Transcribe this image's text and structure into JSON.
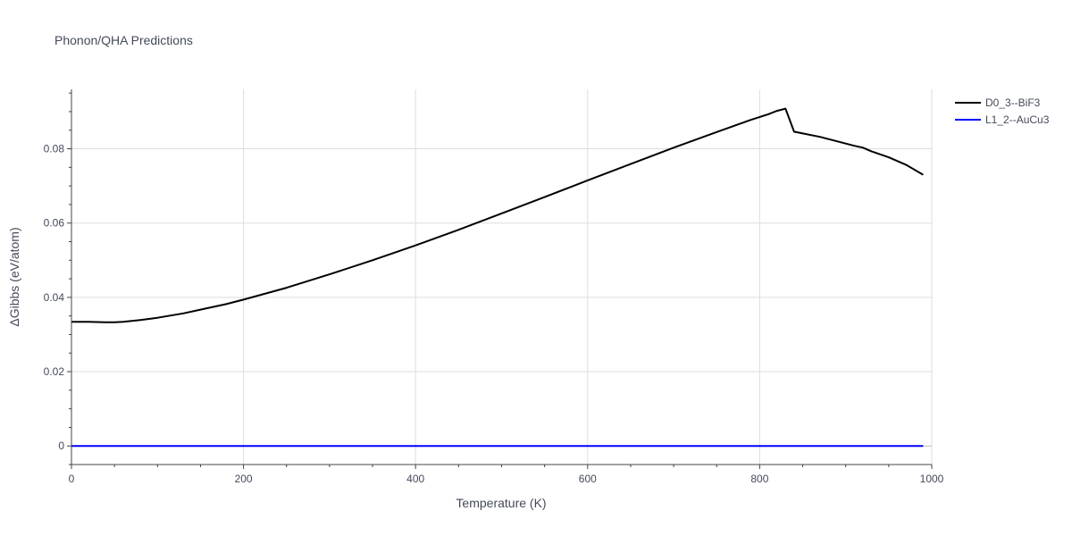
{
  "chart_data": {
    "type": "line",
    "title": "Phonon/QHA Predictions",
    "xlabel": "Temperature (K)",
    "ylabel": "ΔGibbs (eV/atom)",
    "xlim": [
      0,
      1000
    ],
    "ylim": [
      -0.005,
      0.096
    ],
    "xticks": [
      0,
      200,
      400,
      600,
      800,
      1000
    ],
    "xtick_labels": [
      "0",
      "200",
      "400",
      "600",
      "800",
      "1000"
    ],
    "yticks": [
      0,
      0.02,
      0.04,
      0.06,
      0.08
    ],
    "ytick_labels": [
      "0",
      "0.02",
      "0.04",
      "0.06",
      "0.08"
    ],
    "grid": true,
    "legend_position": "top-right",
    "series": [
      {
        "name": "D0_3--BiF3",
        "color": "#000000",
        "x": [
          0,
          20,
          40,
          50,
          60,
          80,
          100,
          130,
          150,
          180,
          200,
          250,
          300,
          350,
          400,
          450,
          500,
          550,
          600,
          650,
          700,
          750,
          790,
          810,
          820,
          830,
          840,
          870,
          890,
          910,
          920,
          930,
          950,
          970,
          990
        ],
        "y": [
          0.0334,
          0.0334,
          0.0333,
          0.0333,
          0.0334,
          0.0339,
          0.0345,
          0.0357,
          0.0367,
          0.0382,
          0.0394,
          0.0426,
          0.0462,
          0.05,
          0.054,
          0.0582,
          0.0626,
          0.067,
          0.0715,
          0.0759,
          0.0803,
          0.0845,
          0.0878,
          0.0893,
          0.0902,
          0.0908,
          0.0846,
          0.0832,
          0.082,
          0.0808,
          0.0803,
          0.0793,
          0.0777,
          0.0757,
          0.073
        ]
      },
      {
        "name": "L1_2--AuCu3",
        "color": "#0000ff",
        "x": [
          0,
          990
        ],
        "y": [
          0,
          0
        ]
      }
    ]
  }
}
